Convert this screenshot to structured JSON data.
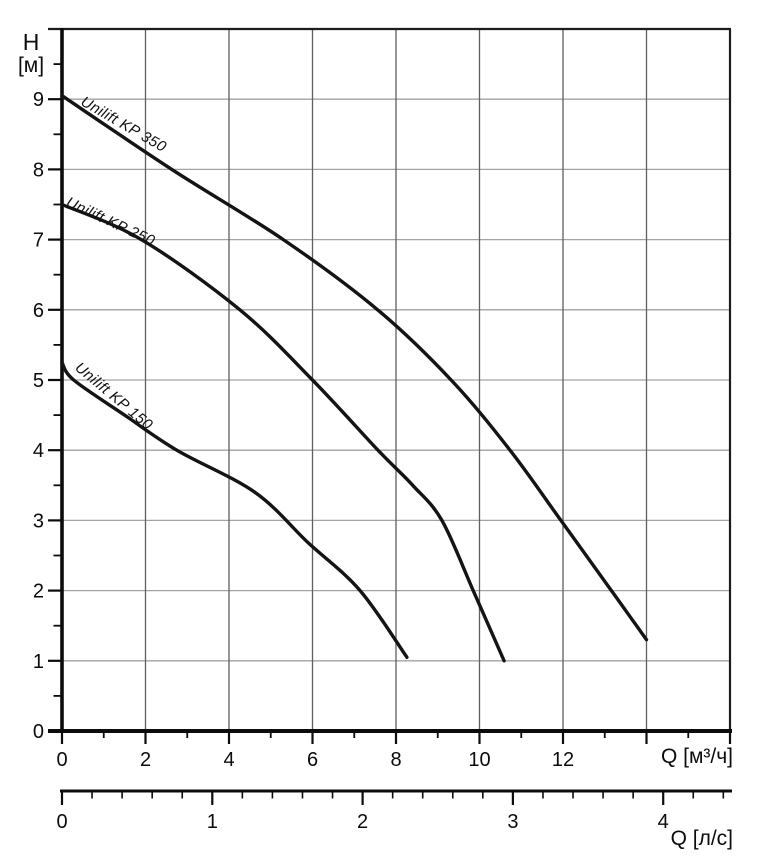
{
  "axes": {
    "y": {
      "name": "H",
      "unit": "[м]",
      "tick_labels": [
        0,
        1,
        2,
        3,
        4,
        5,
        6,
        7,
        8,
        9
      ],
      "minor_step": 0.5,
      "range": [
        0,
        10
      ]
    },
    "x_primary": {
      "unit": "Q [м³/ч]",
      "tick_labels": [
        0,
        2,
        4,
        6,
        8,
        10,
        12
      ],
      "unlabeled_major_ticks": [
        14,
        16
      ],
      "minor_step": 1,
      "range": [
        0,
        16
      ]
    },
    "x_secondary": {
      "unit": "Q [л/с]",
      "tick_labels": [
        0,
        1,
        2,
        3,
        4
      ],
      "minor_step": 0.2,
      "minor_max": 4.4,
      "m3h_per_lps": 3.6
    }
  },
  "chart_data": {
    "type": "line",
    "title": "",
    "xlabel": "Q [м³/ч]",
    "x2label": "Q [л/с]",
    "ylabel": "H [м]",
    "xlim": [
      0,
      16
    ],
    "ylim": [
      0,
      10
    ],
    "grid": {
      "vertical_at_x": [
        2,
        4,
        6,
        8,
        10,
        12,
        14
      ],
      "horizontal_at_y": [
        1,
        2,
        3,
        4,
        5,
        6,
        7,
        8,
        9
      ]
    },
    "legend_position": "labels-along-curves",
    "series": [
      {
        "name": "Unilift KP 350",
        "points": [
          [
            0,
            9.05
          ],
          [
            2.63,
            8.0
          ],
          [
            5.3,
            7.0
          ],
          [
            7.56,
            6.0
          ],
          [
            9.32,
            5.0
          ],
          [
            10.73,
            4.0
          ],
          [
            11.95,
            3.0
          ],
          [
            13.16,
            2.0
          ],
          [
            14.0,
            1.3
          ]
        ]
      },
      {
        "name": "Unilift KP 250",
        "points": [
          [
            0,
            7.5
          ],
          [
            1.9,
            7.0
          ],
          [
            4.26,
            6.0
          ],
          [
            6.0,
            5.0
          ],
          [
            7.57,
            4.0
          ],
          [
            8.4,
            3.5
          ],
          [
            9.1,
            3.0
          ],
          [
            9.85,
            2.0
          ],
          [
            10.59,
            1.0
          ]
        ]
      },
      {
        "name": "Unilift KP 150",
        "points": [
          [
            0,
            5.25
          ],
          [
            0.28,
            5.0
          ],
          [
            1.5,
            4.5
          ],
          [
            2.75,
            4.0
          ],
          [
            4.62,
            3.4
          ],
          [
            5.9,
            2.68
          ],
          [
            7.14,
            2.0
          ],
          [
            8.26,
            1.05
          ]
        ]
      }
    ]
  }
}
